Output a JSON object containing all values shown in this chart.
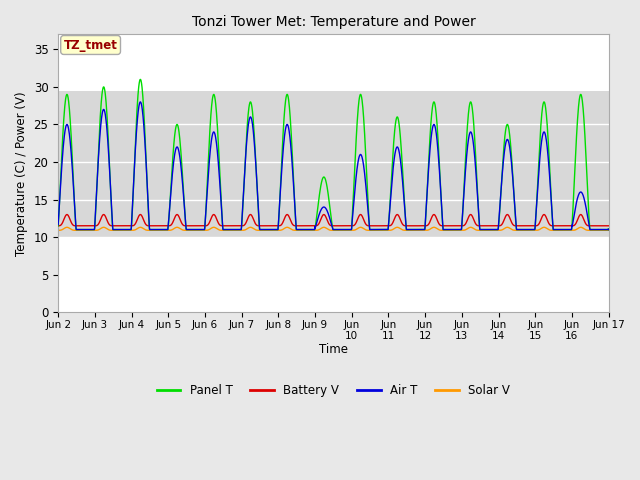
{
  "title": "Tonzi Tower Met: Temperature and Power",
  "xlabel": "Time",
  "ylabel": "Temperature (C) / Power (V)",
  "ylim": [
    0,
    37
  ],
  "yticks": [
    0,
    5,
    10,
    15,
    20,
    25,
    30,
    35
  ],
  "annotation_text": "TZ_tmet",
  "annotation_bg": "#ffffcc",
  "annotation_border": "#aaaaaa",
  "annotation_text_color": "#990000",
  "line_colors": {
    "panel": "#00dd00",
    "battery": "#dd0000",
    "air": "#0000dd",
    "solar": "#ff9900"
  },
  "fig_bg": "#e8e8e8",
  "plot_bg": "#ffffff",
  "band_color": "#d8d8d8",
  "grid_color": "#cccccc",
  "n_days": 15,
  "points_per_day": 144,
  "panel_amp_vals": [
    18,
    19,
    20,
    14,
    18,
    17,
    18,
    7,
    18,
    15,
    17,
    17,
    14,
    17,
    18
  ],
  "air_amp_vals": [
    14,
    16,
    17,
    11,
    13,
    15,
    14,
    3,
    10,
    11,
    14,
    13,
    12,
    13,
    5
  ],
  "dip_day": 7
}
